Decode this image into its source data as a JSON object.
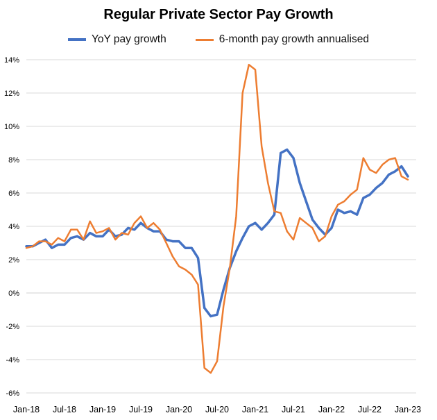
{
  "chart_data": {
    "type": "line",
    "title": "Regular Private Sector Pay Growth",
    "xlabel": "",
    "ylabel": "",
    "ylim": [
      -6,
      14
    ],
    "y_ticks": [
      "14%",
      "12%",
      "10%",
      "8%",
      "6%",
      "4%",
      "2%",
      "0%",
      "-2%",
      "-4%",
      "-6%"
    ],
    "x_ticks": [
      "Jan-18",
      "Jul-18",
      "Jan-19",
      "Jul-19",
      "Jan-20",
      "Jul-20",
      "Jan-21",
      "Jul-21",
      "Jan-22",
      "Jul-22",
      "Jan-23"
    ],
    "x_start": "Jan-18",
    "x_end": "Jan-23",
    "series": [
      {
        "name": "YoY pay growth",
        "color": "#4472C4",
        "values": [
          2.8,
          2.8,
          3.0,
          3.2,
          2.7,
          2.9,
          2.9,
          3.3,
          3.4,
          3.2,
          3.6,
          3.4,
          3.4,
          3.8,
          3.4,
          3.5,
          3.9,
          3.8,
          4.2,
          3.9,
          3.7,
          3.7,
          3.2,
          3.1,
          3.1,
          2.7,
          2.7,
          2.1,
          -0.9,
          -1.4,
          -1.3,
          0.2,
          1.5,
          2.5,
          3.3,
          4.0,
          4.2,
          3.8,
          4.2,
          4.7,
          8.4,
          8.6,
          8.1,
          6.6,
          5.5,
          4.4,
          3.9,
          3.5,
          3.9,
          5.0,
          4.8,
          4.9,
          4.7,
          5.7,
          5.9,
          6.3,
          6.6,
          7.1,
          7.3,
          7.6,
          7.0
        ],
        "end_value": 7.0
      },
      {
        "name": "6-month pay growth annualised",
        "color": "#ED7D31",
        "values": [
          2.7,
          2.8,
          3.1,
          3.1,
          2.9,
          3.3,
          3.1,
          3.8,
          3.8,
          3.2,
          4.3,
          3.6,
          3.7,
          3.9,
          3.2,
          3.6,
          3.5,
          4.2,
          4.6,
          3.9,
          4.2,
          3.8,
          3.0,
          2.2,
          1.6,
          1.4,
          1.1,
          0.5,
          -4.5,
          -4.8,
          -4.1,
          -0.8,
          1.5,
          4.6,
          12.0,
          13.7,
          13.4,
          8.8,
          6.6,
          4.9,
          4.8,
          3.7,
          3.2,
          4.5,
          4.2,
          3.9,
          3.1,
          3.4,
          4.6,
          5.3,
          5.5,
          5.9,
          6.2,
          8.1,
          7.4,
          7.2,
          7.7,
          8.0,
          8.1,
          7.0,
          6.8
        ],
        "end_value": 6.8
      }
    ]
  }
}
